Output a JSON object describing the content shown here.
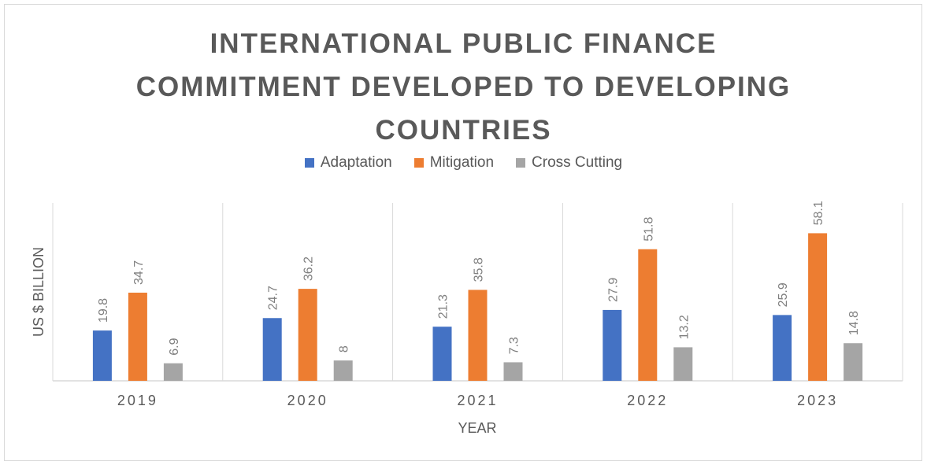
{
  "chart_data": {
    "type": "bar",
    "title": [
      "INTERNATIONAL PUBLIC FINANCE",
      "COMMITMENT DEVELOPED TO DEVELOPING",
      "COUNTRIES"
    ],
    "xlabel": "YEAR",
    "ylabel": "US $ BILLION",
    "categories": [
      "2019",
      "2020",
      "2021",
      "2022",
      "2023"
    ],
    "series": [
      {
        "name": "Adaptation",
        "color": "#4472c4",
        "values": [
          19.8,
          24.7,
          21.3,
          27.9,
          25.9
        ]
      },
      {
        "name": "Mitigation",
        "color": "#ed7d31",
        "values": [
          34.7,
          36.2,
          35.8,
          51.8,
          58.1
        ]
      },
      {
        "name": "Cross Cutting",
        "color": "#a5a5a5",
        "values": [
          6.9,
          8,
          7.3,
          13.2,
          14.8
        ]
      }
    ],
    "ylim": [
      0,
      70
    ],
    "grid": "vertical category separators",
    "legend": "top",
    "data_labels": true
  }
}
